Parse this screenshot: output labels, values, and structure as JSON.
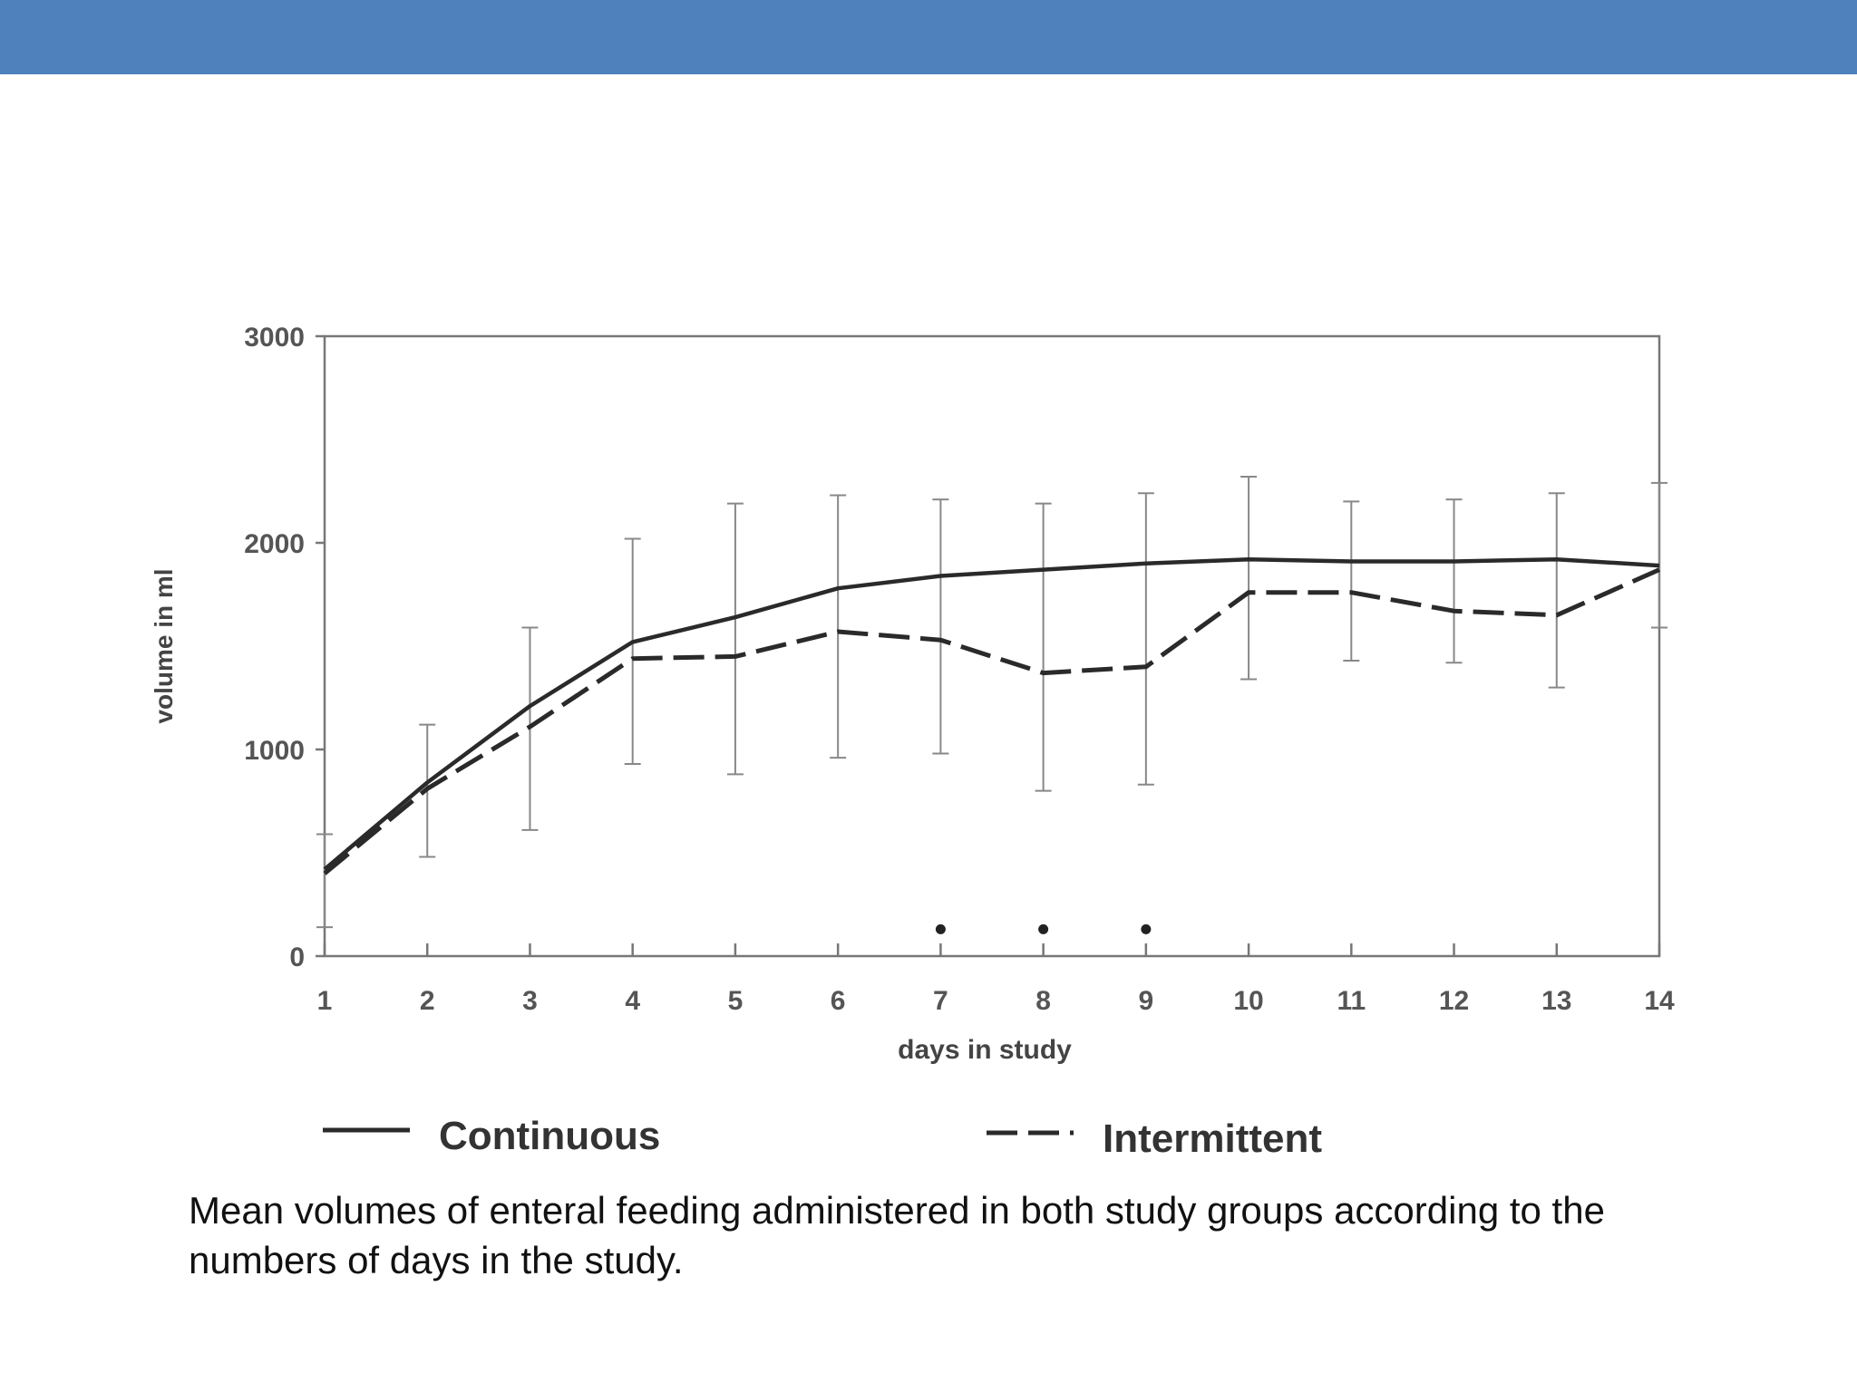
{
  "slide": {
    "caption": "Mean volumes of enteral feeding administered in both study groups according to the numbers of days in the study.",
    "header_color": "#4f81bd"
  },
  "chart_data": {
    "type": "line",
    "xlabel": "days in study",
    "ylabel": "volume in ml",
    "x": [
      1,
      2,
      3,
      4,
      5,
      6,
      7,
      8,
      9,
      10,
      11,
      12,
      13,
      14
    ],
    "xlim": [
      1,
      14
    ],
    "ylim": [
      0,
      3000
    ],
    "yticks": [
      0,
      1000,
      2000,
      3000
    ],
    "grid": false,
    "legend_position": "bottom",
    "series": [
      {
        "name": "Continuous",
        "style": "solid",
        "values": [
          420,
          840,
          1210,
          1520,
          1640,
          1780,
          1840,
          1870,
          1900,
          1920,
          1910,
          1910,
          1920,
          1890
        ],
        "error_upper": [
          590,
          1120,
          1590,
          2020,
          2190,
          2230,
          2210,
          2190,
          2240,
          2320,
          2200,
          2210,
          2240,
          2290
        ],
        "error_lower": [
          140,
          480,
          610,
          930,
          880,
          960,
          980,
          800,
          830,
          1340,
          1430,
          1420,
          1300,
          1590
        ]
      },
      {
        "name": "Intermittent",
        "style": "dashed",
        "values": [
          400,
          810,
          1110,
          1440,
          1450,
          1570,
          1530,
          1370,
          1400,
          1760,
          1760,
          1670,
          1650,
          1870
        ]
      }
    ],
    "significance_markers": {
      "symbol": "*",
      "x": [
        7,
        8,
        9
      ]
    }
  }
}
